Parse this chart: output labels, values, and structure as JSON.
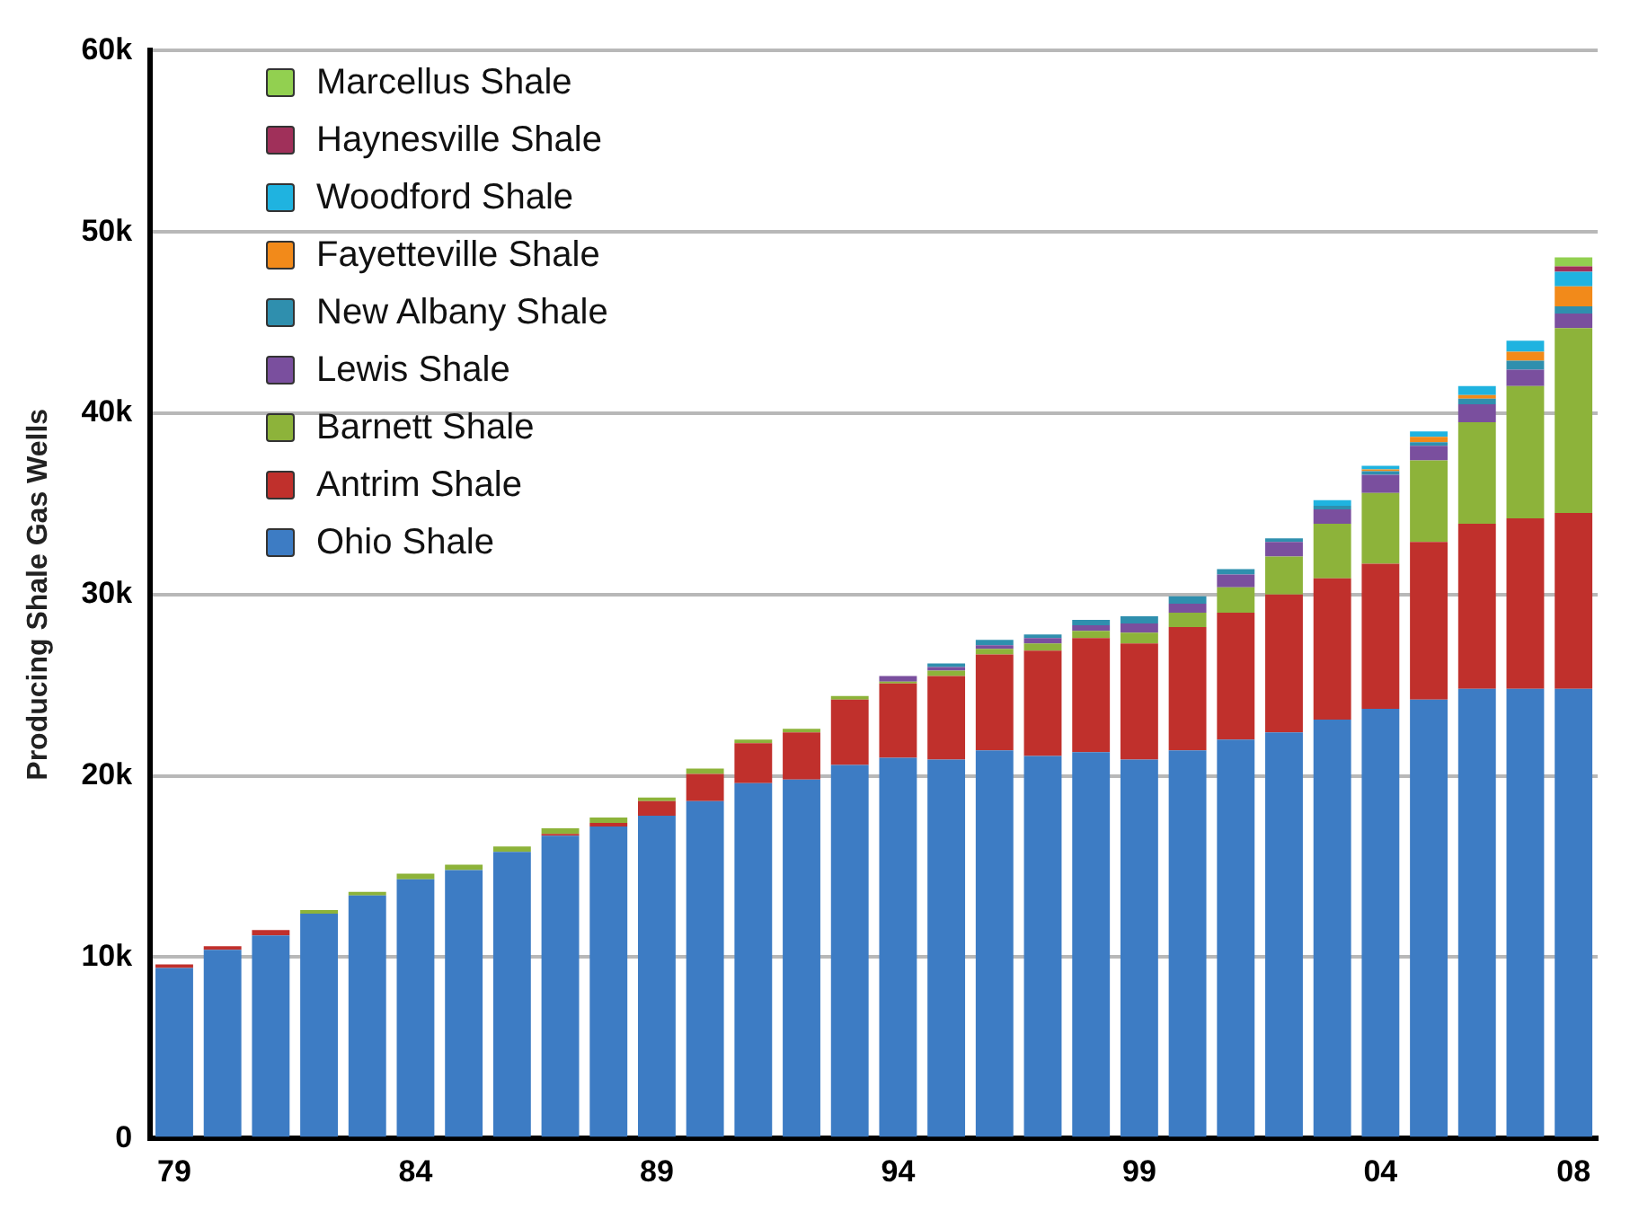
{
  "chart_data": {
    "type": "bar",
    "stacked": true,
    "ylabel": "Producing Shale Gas Wells",
    "categories": [
      "79",
      null,
      null,
      null,
      null,
      "84",
      null,
      null,
      null,
      null,
      "89",
      null,
      null,
      null,
      null,
      "94",
      null,
      null,
      null,
      null,
      "99",
      null,
      null,
      null,
      null,
      "04",
      null,
      null,
      null,
      "08"
    ],
    "series": [
      {
        "name": "Ohio Shale",
        "color": "#3d7cc4",
        "values": [
          9400,
          10400,
          11200,
          12400,
          13400,
          14300,
          14800,
          15800,
          16700,
          17200,
          17800,
          18600,
          19600,
          19800,
          20600,
          21000,
          20900,
          21400,
          21100,
          21300,
          20900,
          21400,
          22000,
          22400,
          23100,
          23700,
          24200,
          24800,
          24800,
          24800
        ]
      },
      {
        "name": "Antrim Shale",
        "color": "#c0302c",
        "values": [
          200,
          200,
          300,
          0,
          0,
          0,
          0,
          0,
          100,
          200,
          800,
          1500,
          2200,
          2600,
          3600,
          4100,
          4600,
          5300,
          5800,
          6300,
          6400,
          6800,
          7000,
          7600,
          7800,
          8000,
          8700,
          9100,
          9400,
          9700
        ]
      },
      {
        "name": "Barnett Shale",
        "color": "#8db33a",
        "values": [
          0,
          0,
          0,
          200,
          200,
          300,
          300,
          300,
          300,
          300,
          200,
          300,
          200,
          200,
          200,
          100,
          300,
          300,
          400,
          400,
          600,
          800,
          1400,
          2100,
          3000,
          3900,
          4500,
          5600,
          7300,
          10200
        ]
      },
      {
        "name": "Lewis Shale",
        "color": "#7a4f9e",
        "values": [
          0,
          0,
          0,
          0,
          0,
          0,
          0,
          0,
          0,
          0,
          0,
          0,
          0,
          0,
          0,
          300,
          200,
          200,
          300,
          300,
          500,
          500,
          700,
          800,
          800,
          1000,
          800,
          1000,
          900,
          800
        ]
      },
      {
        "name": "New Albany Shale",
        "color": "#2f8fae",
        "values": [
          0,
          0,
          0,
          0,
          0,
          0,
          0,
          0,
          0,
          0,
          0,
          0,
          0,
          0,
          0,
          0,
          200,
          300,
          200,
          300,
          400,
          400,
          300,
          200,
          200,
          200,
          200,
          300,
          500,
          400
        ]
      },
      {
        "name": "Fayetteville Shale",
        "color": "#f28a1a",
        "values": [
          0,
          0,
          0,
          0,
          0,
          0,
          0,
          0,
          0,
          0,
          0,
          0,
          0,
          0,
          0,
          0,
          0,
          0,
          0,
          0,
          0,
          0,
          0,
          0,
          0,
          100,
          300,
          200,
          500,
          1100
        ]
      },
      {
        "name": "Woodford Shale",
        "color": "#1fb3e0",
        "values": [
          0,
          0,
          0,
          0,
          0,
          0,
          0,
          0,
          0,
          0,
          0,
          0,
          0,
          0,
          0,
          0,
          0,
          0,
          0,
          0,
          0,
          0,
          0,
          0,
          300,
          200,
          300,
          500,
          600,
          800
        ]
      },
      {
        "name": "Haynesville Shale",
        "color": "#a0305a",
        "values": [
          0,
          0,
          0,
          0,
          0,
          0,
          0,
          0,
          0,
          0,
          0,
          0,
          0,
          0,
          0,
          0,
          0,
          0,
          0,
          0,
          0,
          0,
          0,
          0,
          0,
          0,
          0,
          0,
          0,
          300
        ]
      },
      {
        "name": "Marcellus Shale",
        "color": "#92d050",
        "values": [
          0,
          0,
          0,
          0,
          0,
          0,
          0,
          0,
          0,
          0,
          0,
          0,
          0,
          0,
          0,
          0,
          0,
          0,
          0,
          0,
          0,
          0,
          0,
          0,
          0,
          0,
          0,
          0,
          0,
          500
        ]
      }
    ],
    "ylim": [
      0,
      60000
    ],
    "yticks": [
      0,
      {
        "value": 10000,
        "label": "10k"
      },
      {
        "value": 20000,
        "label": "20k"
      },
      {
        "value": 30000,
        "label": "30k"
      },
      {
        "value": 40000,
        "label": "40k"
      },
      {
        "value": 50000,
        "label": "50k"
      },
      {
        "value": 60000,
        "label": "60k"
      }
    ],
    "grid": "y",
    "legend": "top left"
  }
}
